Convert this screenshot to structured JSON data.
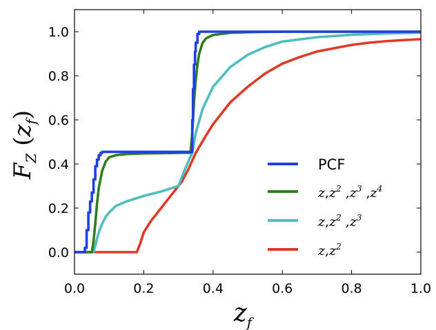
{
  "chart_data": {
    "type": "line",
    "title": "",
    "xlabel": "z_f",
    "ylabel": "F_Z(z_f)",
    "xlim": [
      0.0,
      1.0
    ],
    "ylim": [
      -0.1,
      1.1
    ],
    "xticks": [
      "0.0",
      "0.2",
      "0.4",
      "0.6",
      "0.8",
      "1.0"
    ],
    "yticks": [
      "0.0",
      "0.2",
      "0.4",
      "0.6",
      "0.8",
      "1.0"
    ],
    "xtick_values": [
      0.0,
      0.2,
      0.4,
      0.6,
      0.8,
      1.0
    ],
    "ytick_values": [
      0.0,
      0.2,
      0.4,
      0.6,
      0.8,
      1.0
    ],
    "legend_position": "lower-right",
    "series": [
      {
        "name": "PCF",
        "color": "#1f3fe0",
        "x": [
          0.0,
          0.03,
          0.03,
          0.035,
          0.035,
          0.04,
          0.04,
          0.045,
          0.045,
          0.05,
          0.05,
          0.055,
          0.055,
          0.06,
          0.06,
          0.065,
          0.065,
          0.07,
          0.07,
          0.075,
          0.075,
          0.08,
          0.08,
          0.34,
          0.34,
          0.342,
          0.342,
          0.345,
          0.345,
          0.348,
          0.348,
          0.35,
          0.35,
          0.355,
          0.355,
          0.36,
          0.36,
          1.0
        ],
        "y": [
          0.0,
          0.0,
          0.02,
          0.02,
          0.1,
          0.1,
          0.18,
          0.18,
          0.23,
          0.23,
          0.27,
          0.27,
          0.33,
          0.33,
          0.39,
          0.39,
          0.42,
          0.42,
          0.44,
          0.44,
          0.45,
          0.45,
          0.455,
          0.455,
          0.6,
          0.6,
          0.74,
          0.74,
          0.85,
          0.85,
          0.91,
          0.91,
          0.95,
          0.95,
          0.99,
          0.99,
          1.0,
          1.0
        ]
      },
      {
        "name": "z,z^2 ,z^3 ,z^4",
        "color": "#2e7d1e",
        "x": [
          0.0,
          0.05,
          0.055,
          0.06,
          0.065,
          0.07,
          0.08,
          0.09,
          0.1,
          0.12,
          0.15,
          0.2,
          0.25,
          0.3,
          0.335,
          0.34,
          0.345,
          0.35,
          0.355,
          0.36,
          0.37,
          0.38,
          0.4,
          0.45,
          0.5,
          0.6,
          1.0
        ],
        "y": [
          0.0,
          0.0,
          0.05,
          0.13,
          0.22,
          0.29,
          0.37,
          0.41,
          0.43,
          0.44,
          0.445,
          0.448,
          0.449,
          0.45,
          0.451,
          0.54,
          0.68,
          0.78,
          0.85,
          0.9,
          0.95,
          0.97,
          0.985,
          0.995,
          0.998,
          1.0,
          1.0
        ]
      },
      {
        "name": "z,z^2 ,z^3",
        "color": "#4dbdbd",
        "x": [
          0.0,
          0.055,
          0.06,
          0.065,
          0.07,
          0.08,
          0.09,
          0.1,
          0.12,
          0.15,
          0.2,
          0.25,
          0.28,
          0.3,
          0.32,
          0.34,
          0.35,
          0.37,
          0.4,
          0.45,
          0.5,
          0.55,
          0.6,
          0.7,
          0.8,
          0.9,
          1.0
        ],
        "y": [
          0.0,
          0.0,
          0.03,
          0.06,
          0.09,
          0.13,
          0.16,
          0.18,
          0.21,
          0.23,
          0.255,
          0.275,
          0.29,
          0.3,
          0.38,
          0.45,
          0.54,
          0.65,
          0.75,
          0.84,
          0.895,
          0.93,
          0.955,
          0.975,
          0.986,
          0.992,
          0.996
        ]
      },
      {
        "name": "z,z^2",
        "color": "#e03a26",
        "x": [
          0.0,
          0.18,
          0.19,
          0.2,
          0.22,
          0.25,
          0.28,
          0.3,
          0.31,
          0.33,
          0.35,
          0.38,
          0.4,
          0.45,
          0.5,
          0.55,
          0.6,
          0.65,
          0.7,
          0.75,
          0.8,
          0.85,
          0.9,
          0.95,
          1.0
        ],
        "y": [
          0.0,
          0.0,
          0.04,
          0.09,
          0.14,
          0.2,
          0.26,
          0.3,
          0.32,
          0.38,
          0.45,
          0.53,
          0.58,
          0.68,
          0.75,
          0.81,
          0.855,
          0.885,
          0.91,
          0.925,
          0.94,
          0.95,
          0.957,
          0.962,
          0.966
        ]
      }
    ]
  }
}
